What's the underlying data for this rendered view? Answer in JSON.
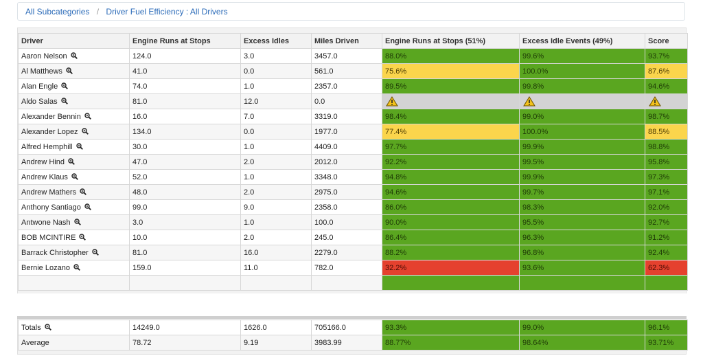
{
  "breadcrumb": {
    "items": [
      "All Subcategories",
      "Driver Fuel Efficiency : All Drivers"
    ],
    "separator": "/"
  },
  "table": {
    "columns": [
      "Driver",
      "Engine Runs at Stops",
      "Excess Idles",
      "Miles Driven",
      "Engine Runs at Stops (51%)",
      "Excess Idle Events (49%)",
      "Score"
    ],
    "rows": [
      {
        "driver": "Aaron Nelson",
        "engine_runs": "124.0",
        "excess_idles": "3.0",
        "miles": "3457.0",
        "engine_pct": "88.0%",
        "idle_pct": "99.6%",
        "score": "93.7%",
        "engine_status": "green",
        "idle_status": "green",
        "score_status": "green"
      },
      {
        "driver": "Al Matthews",
        "engine_runs": "41.0",
        "excess_idles": "0.0",
        "miles": "561.0",
        "engine_pct": "75.6%",
        "idle_pct": "100.0%",
        "score": "87.6%",
        "engine_status": "yellow",
        "idle_status": "green",
        "score_status": "yellow"
      },
      {
        "driver": "Alan Engle",
        "engine_runs": "74.0",
        "excess_idles": "1.0",
        "miles": "2357.0",
        "engine_pct": "89.5%",
        "idle_pct": "99.8%",
        "score": "94.6%",
        "engine_status": "green",
        "idle_status": "green",
        "score_status": "green"
      },
      {
        "driver": "Aldo Salas",
        "engine_runs": "81.0",
        "excess_idles": "12.0",
        "miles": "0.0",
        "engine_pct": "",
        "idle_pct": "",
        "score": "",
        "engine_status": "warning",
        "idle_status": "warning",
        "score_status": "warning"
      },
      {
        "driver": "Alexander Bennin",
        "engine_runs": "16.0",
        "excess_idles": "7.0",
        "miles": "3319.0",
        "engine_pct": "98.4%",
        "idle_pct": "99.0%",
        "score": "98.7%",
        "engine_status": "green",
        "idle_status": "green",
        "score_status": "green"
      },
      {
        "driver": "Alexander Lopez",
        "engine_runs": "134.0",
        "excess_idles": "0.0",
        "miles": "1977.0",
        "engine_pct": "77.4%",
        "idle_pct": "100.0%",
        "score": "88.5%",
        "engine_status": "yellow",
        "idle_status": "green",
        "score_status": "yellow"
      },
      {
        "driver": "Alfred Hemphill",
        "engine_runs": "30.0",
        "excess_idles": "1.0",
        "miles": "4409.0",
        "engine_pct": "97.7%",
        "idle_pct": "99.9%",
        "score": "98.8%",
        "engine_status": "green",
        "idle_status": "green",
        "score_status": "green"
      },
      {
        "driver": "Andrew Hind",
        "engine_runs": "47.0",
        "excess_idles": "2.0",
        "miles": "2012.0",
        "engine_pct": "92.2%",
        "idle_pct": "99.5%",
        "score": "95.8%",
        "engine_status": "green",
        "idle_status": "green",
        "score_status": "green"
      },
      {
        "driver": "Andrew Klaus",
        "engine_runs": "52.0",
        "excess_idles": "1.0",
        "miles": "3348.0",
        "engine_pct": "94.8%",
        "idle_pct": "99.9%",
        "score": "97.3%",
        "engine_status": "green",
        "idle_status": "green",
        "score_status": "green"
      },
      {
        "driver": "Andrew Mathers",
        "engine_runs": "48.0",
        "excess_idles": "2.0",
        "miles": "2975.0",
        "engine_pct": "94.6%",
        "idle_pct": "99.7%",
        "score": "97.1%",
        "engine_status": "green",
        "idle_status": "green",
        "score_status": "green"
      },
      {
        "driver": "Anthony Santiago",
        "engine_runs": "99.0",
        "excess_idles": "9.0",
        "miles": "2358.0",
        "engine_pct": "86.0%",
        "idle_pct": "98.3%",
        "score": "92.0%",
        "engine_status": "green",
        "idle_status": "green",
        "score_status": "green"
      },
      {
        "driver": "Antwone Nash",
        "engine_runs": "3.0",
        "excess_idles": "1.0",
        "miles": "100.0",
        "engine_pct": "90.0%",
        "idle_pct": "95.5%",
        "score": "92.7%",
        "engine_status": "green",
        "idle_status": "green",
        "score_status": "green"
      },
      {
        "driver": "BOB MCINTIRE",
        "engine_runs": "10.0",
        "excess_idles": "2.0",
        "miles": "245.0",
        "engine_pct": "86.4%",
        "idle_pct": "96.3%",
        "score": "91.2%",
        "engine_status": "green",
        "idle_status": "green",
        "score_status": "green"
      },
      {
        "driver": "Barrack Christopher",
        "engine_runs": "81.0",
        "excess_idles": "16.0",
        "miles": "2279.0",
        "engine_pct": "88.2%",
        "idle_pct": "96.8%",
        "score": "92.4%",
        "engine_status": "green",
        "idle_status": "green",
        "score_status": "green"
      },
      {
        "driver": "Bernie Lozano",
        "engine_runs": "159.0",
        "excess_idles": "11.0",
        "miles": "782.0",
        "engine_pct": "32.2%",
        "idle_pct": "93.6%",
        "score": "62.3%",
        "engine_status": "red",
        "idle_status": "green",
        "score_status": "red"
      }
    ]
  },
  "summary": {
    "totals": {
      "label": "Totals",
      "engine_runs": "14249.0",
      "excess_idles": "1626.0",
      "miles": "705166.0",
      "engine_pct": "93.3%",
      "idle_pct": "99.0%",
      "score": "96.1%"
    },
    "average": {
      "label": "Average",
      "engine_runs": "78.72",
      "excess_idles": "9.19",
      "miles": "3983.99",
      "engine_pct": "88.77%",
      "idle_pct": "98.64%",
      "score": "93.71%"
    }
  },
  "colors": {
    "green": "#5aa620",
    "yellow": "#fbd54c",
    "red": "#e5412e",
    "warning": "#d3d3d3",
    "link": "#2a6ab8"
  },
  "icons": {
    "driver_detail": "zoom-icon",
    "no_data": "warning-icon"
  }
}
